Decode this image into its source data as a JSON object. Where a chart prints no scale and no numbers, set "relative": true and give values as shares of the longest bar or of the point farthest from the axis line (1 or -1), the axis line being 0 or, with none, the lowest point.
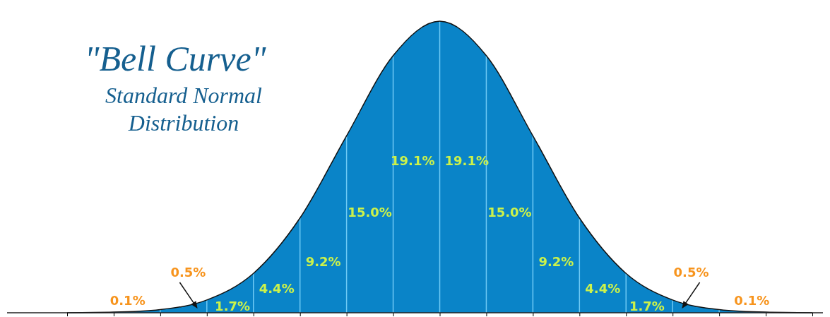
{
  "chart_data": {
    "type": "area",
    "title": "\"Bell Curve\"",
    "subtitle": "Standard Normal Distribution",
    "categories": [
      null,
      null,
      null,
      null,
      null,
      null,
      null,
      null,
      null,
      null,
      null,
      null,
      null,
      null,
      null,
      null,
      null
    ],
    "series": [
      {
        "color": "#0a84c8",
        "values": [
          0.0003,
          0.0022,
          0.011,
          0.044,
          0.135,
          0.325,
          0.607,
          0.882,
          1,
          0.882,
          0.607,
          0.325,
          0.135,
          0.044,
          0.011,
          0.0022,
          0.0003
        ]
      }
    ],
    "relative": true,
    "grid": "x",
    "marker": "none",
    "annotations": [
      "0.1%",
      "0.5%",
      "1.7%",
      "4.4%",
      "9.2%",
      "15.0%",
      "19.1%",
      "19.1%",
      "15.0%",
      "9.2%",
      "4.4%",
      "1.7%",
      "0.5%",
      "0.1%"
    ]
  }
}
